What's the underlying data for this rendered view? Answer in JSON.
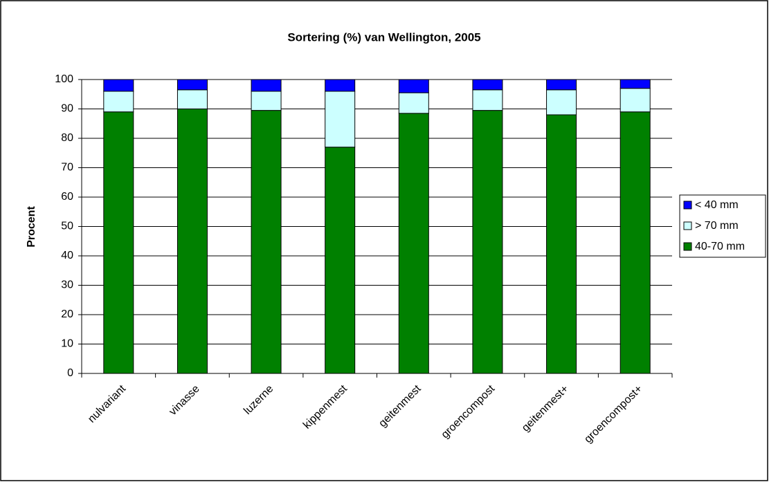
{
  "chart_data": {
    "type": "stacked_bar",
    "title": "Sortering (%) van Wellington, 2005",
    "y_label": "Procent",
    "categories": [
      "nulvariant",
      "vinasse",
      "luzerne",
      "kippenmest",
      "geitenmest",
      "groencompost",
      "geitenmest+",
      "groencompost+"
    ],
    "series": [
      {
        "name": "40-70 mm",
        "color": "#008000",
        "values": [
          89,
          90,
          89.5,
          77,
          88.5,
          89.5,
          88,
          89
        ]
      },
      {
        "name": "> 70 mm",
        "color": "#ccffff",
        "values": [
          7,
          6.5,
          6.5,
          19,
          7,
          7,
          8.5,
          8
        ]
      },
      {
        "name": "< 40 mm",
        "color": "#0000ff",
        "values": [
          4,
          3.5,
          4,
          4,
          4.5,
          3.5,
          3.5,
          3
        ]
      }
    ],
    "ylim": [
      0,
      100
    ],
    "yticks": [
      0,
      10,
      20,
      30,
      40,
      50,
      60,
      70,
      80,
      90,
      100
    ],
    "grid": true,
    "legend": "right"
  }
}
